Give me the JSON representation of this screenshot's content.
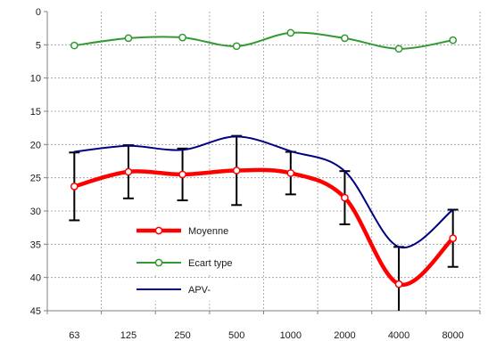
{
  "chart_data": {
    "type": "line",
    "title": "",
    "xlabel": "",
    "ylabel": "",
    "categories": [
      "63",
      "125",
      "250",
      "500",
      "1000",
      "2000",
      "4000",
      "8000"
    ],
    "ylim": [
      0,
      45
    ],
    "y_inverted": true,
    "y_ticks": [
      0,
      5,
      10,
      15,
      20,
      25,
      30,
      35,
      40,
      45
    ],
    "grid": "dotted, both axes",
    "legend_position": "lower-left inside plot",
    "series": [
      {
        "name": "Moyenne",
        "color": "#ff0000",
        "marker": "open-circle",
        "values": [
          26.3,
          24.1,
          24.5,
          23.9,
          24.3,
          28.0,
          41.0,
          34.1
        ],
        "error_bars": [
          5.1,
          4.0,
          3.9,
          5.2,
          3.2,
          4.0,
          5.6,
          4.3
        ]
      },
      {
        "name": "Ecart type",
        "color": "#339933",
        "marker": "open-circle",
        "values": [
          5.1,
          4.0,
          3.9,
          5.2,
          3.2,
          4.0,
          5.6,
          4.3
        ]
      },
      {
        "name": "APV-",
        "color": "#000080",
        "marker": "none",
        "values": [
          21.1,
          20.2,
          20.8,
          18.8,
          21.0,
          24.0,
          35.4,
          29.8
        ]
      }
    ]
  }
}
